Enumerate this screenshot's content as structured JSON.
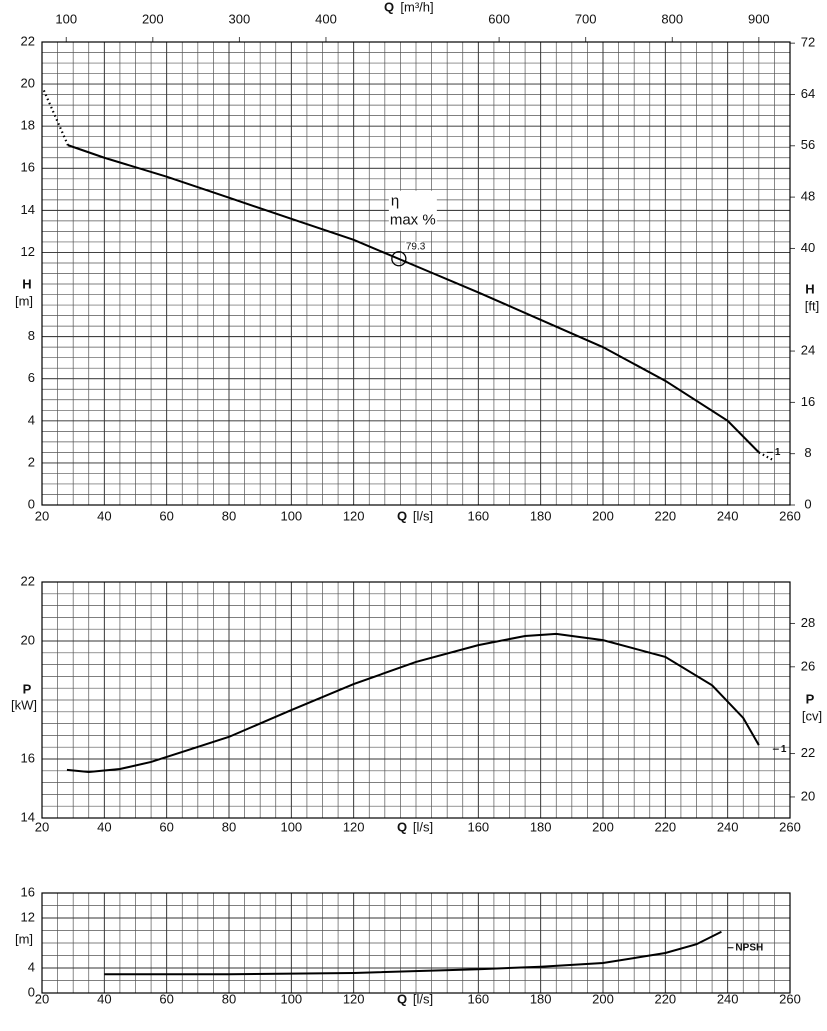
{
  "chart_data": [
    {
      "type": "line",
      "xlabel": "Q",
      "xunit": "[l/s]",
      "x2label": "Q",
      "x2unit": "[m³/h]",
      "ylabel": "H",
      "yunit": "[m]",
      "y2label": "H",
      "y2unit": "[ft]",
      "xlim": [
        20,
        260
      ],
      "xticks": [
        20,
        40,
        60,
        80,
        100,
        120,
        160,
        180,
        200,
        220,
        240,
        260
      ],
      "x2lim": [
        72,
        936
      ],
      "x2ticks": [
        100,
        200,
        300,
        400,
        600,
        700,
        800,
        900
      ],
      "ylim": [
        0,
        22
      ],
      "yticks": [
        0,
        2,
        4,
        6,
        8,
        12,
        14,
        16,
        18,
        20,
        22
      ],
      "y2lim": [
        0,
        72.18
      ],
      "y2ticks": [
        0,
        8,
        16,
        24,
        40,
        48,
        56,
        64,
        72
      ],
      "grid": true,
      "series": [
        {
          "style": "dotted",
          "color": "#000000",
          "x": [
            20.6,
            28.3
          ],
          "values": [
            19.7,
            17.1
          ]
        },
        {
          "name": "1",
          "style": "solid",
          "color": "#000000",
          "x": [
            28.3,
            40,
            60,
            80,
            100,
            120,
            140,
            160,
            180,
            200,
            220,
            240,
            250
          ],
          "values": [
            17.1,
            16.5,
            15.6,
            14.6,
            13.6,
            12.6,
            11.35,
            10.1,
            8.8,
            7.5,
            5.9,
            4.0,
            2.5
          ]
        },
        {
          "style": "dotted",
          "color": "#000000",
          "x": [
            250,
            255
          ],
          "values": [
            2.5,
            2.1
          ]
        }
      ],
      "annotation": {
        "text": [
          "η",
          "max %"
        ],
        "value": 79.3,
        "x": 134.5,
        "y": 11.7
      }
    },
    {
      "type": "line",
      "xlabel": "Q",
      "xunit": "[l/s]",
      "ylabel": "P",
      "yunit": "[kW]",
      "y2label": "P",
      "y2unit": "[cv]",
      "xlim": [
        20,
        260
      ],
      "xticks": [
        20,
        40,
        60,
        80,
        100,
        120,
        160,
        180,
        200,
        220,
        240,
        260
      ],
      "ylim": [
        14,
        22
      ],
      "yticks": [
        14,
        16,
        20,
        22
      ],
      "y2lim": [
        19.03,
        29.91
      ],
      "y2ticks": [
        20,
        22,
        26,
        28
      ],
      "grid": true,
      "series": [
        {
          "name": "1",
          "style": "solid",
          "color": "#000000",
          "x": [
            28,
            35,
            45,
            55,
            65,
            80,
            100,
            120,
            140,
            160,
            175,
            185,
            200,
            220,
            235,
            245,
            250
          ],
          "values": [
            15.63,
            15.56,
            15.66,
            15.9,
            16.24,
            16.75,
            17.66,
            18.54,
            19.29,
            19.86,
            20.17,
            20.24,
            20.03,
            19.46,
            18.5,
            17.39,
            16.47
          ]
        }
      ]
    },
    {
      "type": "line",
      "xlabel": "Q",
      "xunit": "[l/s]",
      "yunit": "[m]",
      "xlim": [
        20,
        260
      ],
      "xticks": [
        20,
        40,
        60,
        80,
        100,
        120,
        160,
        180,
        200,
        220,
        240,
        260
      ],
      "ylim": [
        0,
        16
      ],
      "yticks": [
        0,
        4,
        12,
        16
      ],
      "grid": true,
      "series": [
        {
          "name": "NPSH",
          "style": "solid",
          "color": "#000000",
          "x": [
            40,
            80,
            120,
            160,
            180,
            200,
            220,
            230,
            238
          ],
          "values": [
            3.0,
            3.0,
            3.2,
            3.8,
            4.2,
            4.8,
            6.4,
            7.8,
            9.8
          ]
        }
      ]
    }
  ]
}
